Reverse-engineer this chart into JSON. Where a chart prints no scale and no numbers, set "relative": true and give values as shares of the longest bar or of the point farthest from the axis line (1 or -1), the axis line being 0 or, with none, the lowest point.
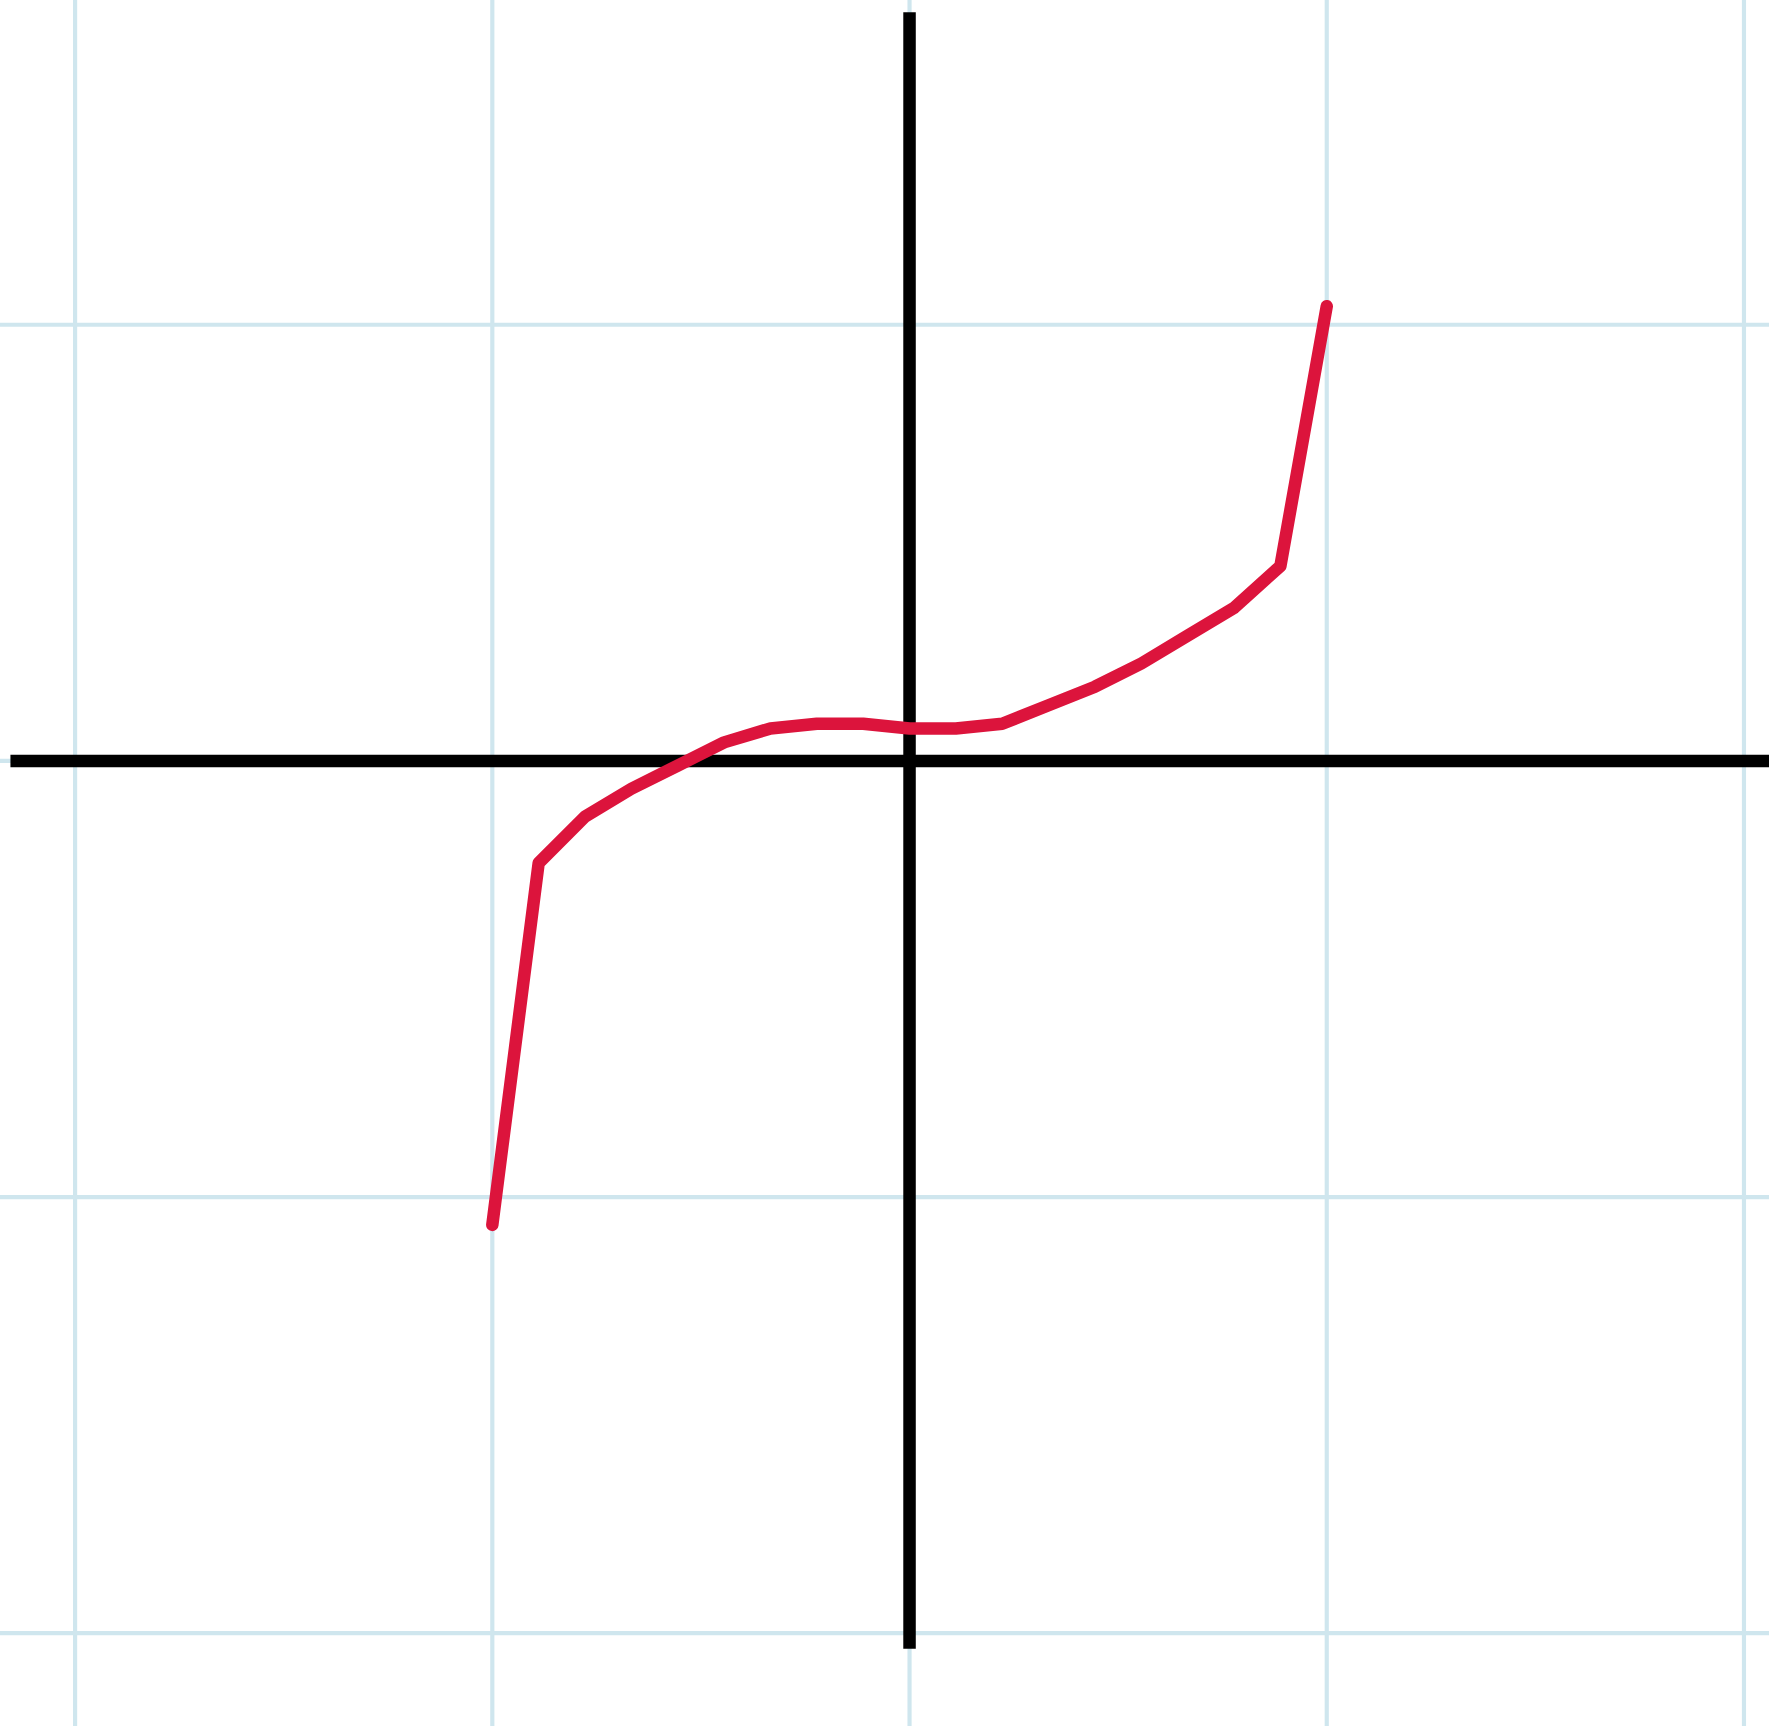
{
  "chart_data": {
    "type": "line",
    "relative": true,
    "grid": true,
    "tick_labels": false,
    "categories": [
      null,
      null,
      null,
      null,
      null,
      null,
      null,
      null,
      null,
      null,
      null,
      null,
      null,
      null,
      null,
      null,
      null,
      null,
      null
    ],
    "series": [
      {
        "color": "#dc143c",
        "values": [
          -1.0,
          -0.22,
          -0.12,
          -0.06,
          -0.01,
          0.04,
          0.07,
          0.08,
          0.08,
          0.07,
          0.07,
          0.08,
          0.12,
          0.16,
          0.21,
          0.27,
          0.33,
          0.42,
          0.98
        ]
      }
    ]
  }
}
